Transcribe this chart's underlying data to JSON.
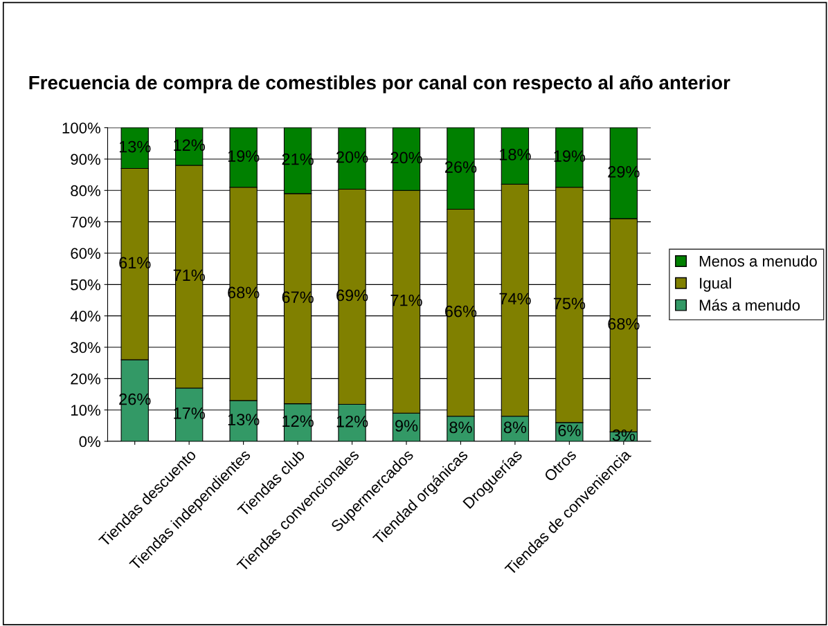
{
  "chart_data": {
    "type": "bar",
    "stacked": true,
    "title": "Frecuencia de compra de comestibles por canal con respecto al año anterior",
    "categories": [
      null,
      "Tiendas descuento",
      "Tiendas independientes",
      "Tiendas club",
      "Tiendas convencionales",
      "Supermercados",
      "Tiendad orgánicas",
      "Droguerías",
      "Otros",
      "Tiendas de conveniencia"
    ],
    "series": [
      {
        "name": "Más a menudo",
        "color": "#339966",
        "values": [
          26,
          17,
          13,
          12,
          11.8,
          9,
          8,
          8,
          6,
          3
        ],
        "value_labels": [
          "26%",
          "17%",
          "13%",
          "12%",
          "12%",
          "9%",
          "8%",
          "8%",
          "6%",
          "3%"
        ]
      },
      {
        "name": "Igual",
        "color": "#808000",
        "values": [
          61,
          71,
          68,
          67,
          68.6,
          71,
          66,
          74,
          75,
          68
        ],
        "value_labels": [
          "61%",
          "71%",
          "68%",
          "67%",
          "69%",
          "71%",
          "66%",
          "74%",
          "75%",
          "68%"
        ]
      },
      {
        "name": "Menos a menudo",
        "color": "#008000",
        "values": [
          13,
          12,
          19,
          21,
          19.6,
          20,
          26,
          18,
          19,
          29
        ],
        "value_labels": [
          "13%",
          "12%",
          "19%",
          "21%",
          "20%",
          "20%",
          "26%",
          "18%",
          "19%",
          "29%"
        ]
      }
    ],
    "ylim": [
      0,
      100
    ],
    "yticks": [
      {
        "value": 0,
        "label": "0%"
      },
      {
        "value": 10,
        "label": "10%"
      },
      {
        "value": 20,
        "label": "20%"
      },
      {
        "value": 30,
        "label": "30%"
      },
      {
        "value": 40,
        "label": "40%"
      },
      {
        "value": 50,
        "label": "50%"
      },
      {
        "value": 60,
        "label": "60%"
      },
      {
        "value": 70,
        "label": "70%"
      },
      {
        "value": 80,
        "label": "80%"
      },
      {
        "value": 90,
        "label": "90%"
      },
      {
        "value": 100,
        "label": "100%"
      }
    ],
    "grid": "y",
    "legend": "right"
  }
}
